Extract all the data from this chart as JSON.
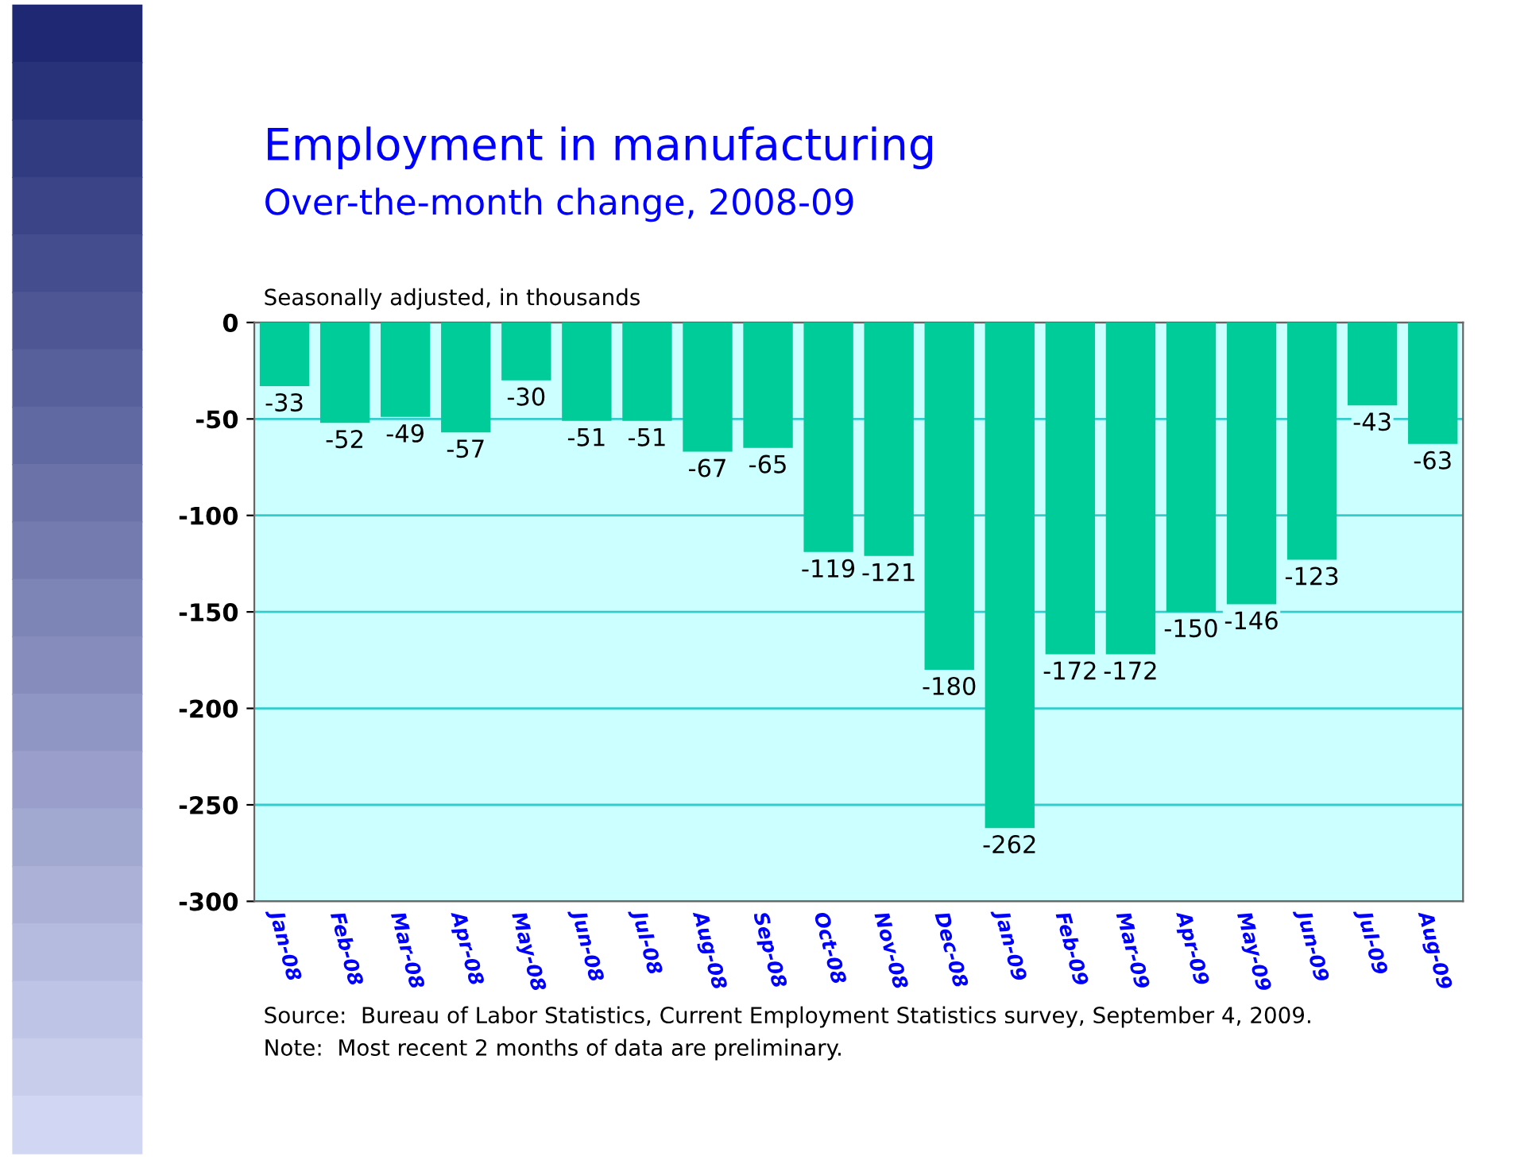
{
  "chart_data": {
    "type": "bar",
    "title": "Employment in manufacturing",
    "subtitle": "Over-the-month change, 2008-09",
    "ylabel": "Seasonally adjusted, in thousands",
    "categories": [
      "Jan-08",
      "Feb-08",
      "Mar-08",
      "Apr-08",
      "May-08",
      "Jun-08",
      "Jul-08",
      "Aug-08",
      "Sep-08",
      "Oct-08",
      "Nov-08",
      "Dec-08",
      "Jan-09",
      "Feb-09",
      "Mar-09",
      "Apr-09",
      "May-09",
      "Jun-09",
      "Jul-09",
      "Aug-09"
    ],
    "values": [
      -33,
      -52,
      -49,
      -57,
      -30,
      -51,
      -51,
      -67,
      -65,
      -119,
      -121,
      -180,
      -262,
      -172,
      -172,
      -150,
      -146,
      -123,
      -43,
      -63
    ],
    "color": "#00cc99",
    "ylim": [
      -300,
      0
    ],
    "yticks": [
      -300,
      -250,
      -200,
      -150,
      -100,
      -50,
      0
    ],
    "grid": "y",
    "data_labels": true,
    "annotations": [
      "Source:  Bureau of Labor Statistics, Current Employment Statistics survey, September 4, 2009.",
      "Note:  Most recent 2 months of data are preliminary."
    ]
  }
}
